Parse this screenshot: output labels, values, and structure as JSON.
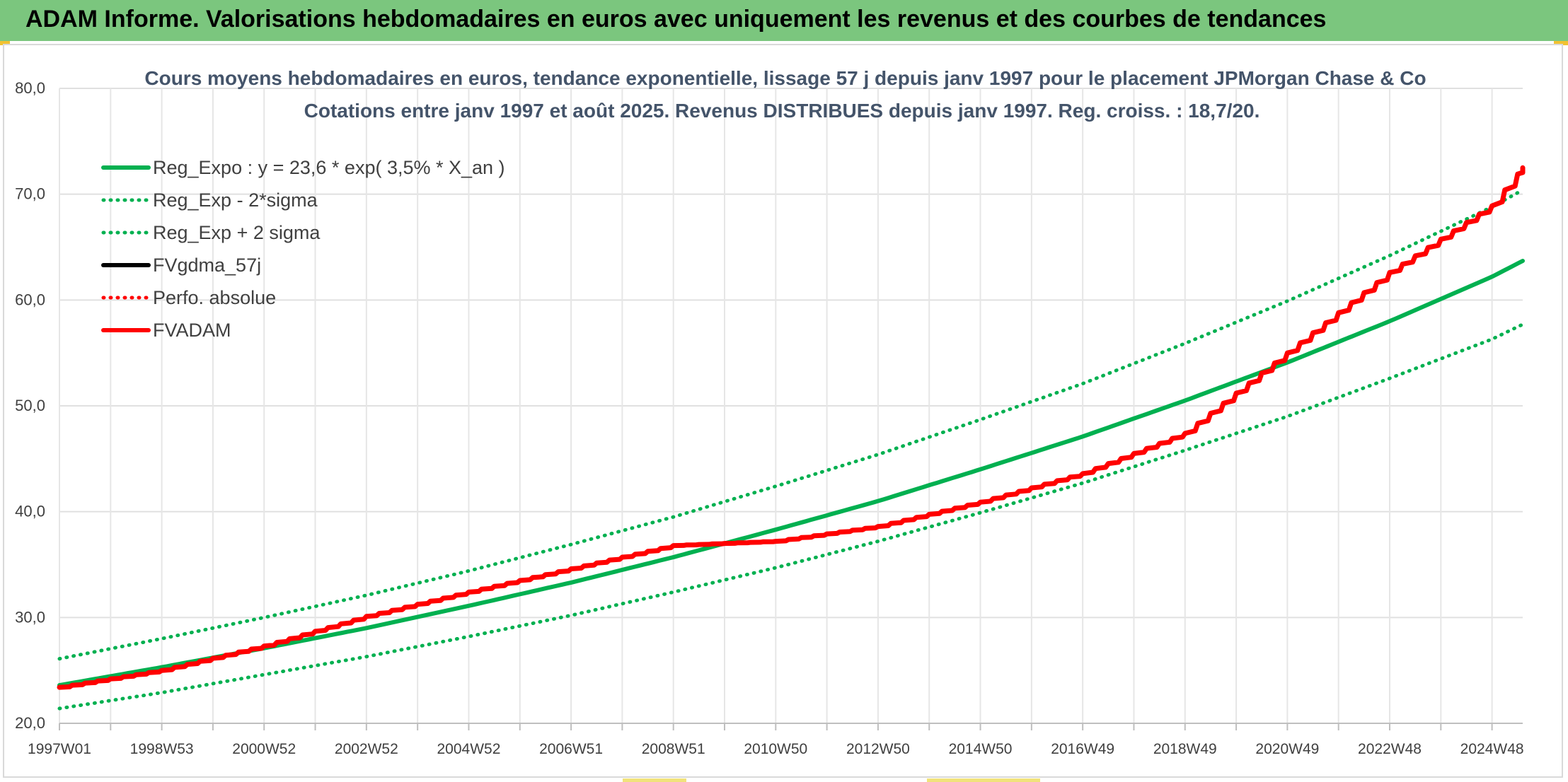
{
  "header": {
    "title": "ADAM Informe. Valorisations hebdomadaires en euros avec uniquement les revenus et des courbes de tendances"
  },
  "chart_data": {
    "type": "line",
    "title": "Cours moyens hebdomadaires en euros, tendance exponentielle, lissage 57 j depuis janv 1997 pour le placement JPMorgan Chase & Co",
    "subtitle": "Cotations entre janv 1997 et août 2025. Revenus DISTRIBUES depuis janv 1997. Reg. croiss. : 18,7/20.",
    "xlabel": "",
    "ylabel": "",
    "ylim": [
      20,
      80
    ],
    "y_ticks": [
      "20,0",
      "30,0",
      "40,0",
      "50,0",
      "60,0",
      "70,0",
      "80,0"
    ],
    "x_ticks": [
      "1997W01",
      "1998W53",
      "2000W52",
      "2002W52",
      "2004W52",
      "2006W51",
      "2008W51",
      "2010W50",
      "2012W50",
      "2014W50",
      "2016W49",
      "2018W49",
      "2020W49",
      "2022W48",
      "2024W48"
    ],
    "grid": true,
    "legend_position": "top-left",
    "x_years": [
      1997,
      1999,
      2001,
      2003,
      2005,
      2007,
      2009,
      2011,
      2013,
      2015,
      2017,
      2019,
      2021,
      2023,
      2025,
      2025.6
    ],
    "series": [
      {
        "name": "Reg_Expo : y = 23,6 * exp( 3,5% *  X_an )",
        "color": "#00b050",
        "style": "solid",
        "width": 6,
        "values": [
          23.6,
          25.3,
          27.1,
          29.0,
          31.1,
          33.3,
          35.7,
          38.3,
          41.0,
          44.0,
          47.1,
          50.5,
          54.1,
          58.0,
          62.2,
          63.7
        ]
      },
      {
        "name": "Reg_Exp - 2*sigma",
        "color": "#00b050",
        "style": "dotted",
        "width": 5,
        "values": [
          21.4,
          22.9,
          24.6,
          26.3,
          28.2,
          30.2,
          32.4,
          34.7,
          37.2,
          39.9,
          42.7,
          45.8,
          49.0,
          52.6,
          56.3,
          57.7
        ]
      },
      {
        "name": "Reg_Exp + 2 sigma",
        "color": "#00b050",
        "style": "dotted",
        "width": 5,
        "values": [
          26.1,
          28.0,
          30.0,
          32.1,
          34.4,
          36.9,
          39.5,
          42.4,
          45.4,
          48.7,
          52.1,
          55.9,
          59.9,
          64.2,
          68.8,
          70.4
        ]
      },
      {
        "name": "FVgdma_57j",
        "color": "#000000",
        "style": "solid",
        "width": 4,
        "values": [
          23.4,
          25.0,
          27.3,
          30.1,
          32.4,
          34.6,
          36.8,
          37.2,
          38.6,
          40.9,
          43.6,
          47.4,
          55.0,
          62.6,
          68.9,
          72.5
        ]
      },
      {
        "name": "Perfo. absolue",
        "color": "#ff0000",
        "style": "dotted",
        "width": 3,
        "values": [
          23.4,
          25.0,
          27.3,
          30.1,
          32.4,
          34.6,
          36.8,
          37.2,
          38.6,
          40.9,
          43.6,
          47.4,
          55.0,
          62.6,
          68.9,
          72.5
        ]
      },
      {
        "name": "FVADAM",
        "color": "#ff0000",
        "style": "solid",
        "width": 7,
        "values": [
          23.4,
          25.0,
          27.3,
          30.1,
          32.4,
          34.6,
          36.8,
          37.2,
          38.6,
          40.9,
          43.6,
          47.4,
          55.0,
          62.6,
          68.9,
          72.5
        ]
      }
    ]
  }
}
